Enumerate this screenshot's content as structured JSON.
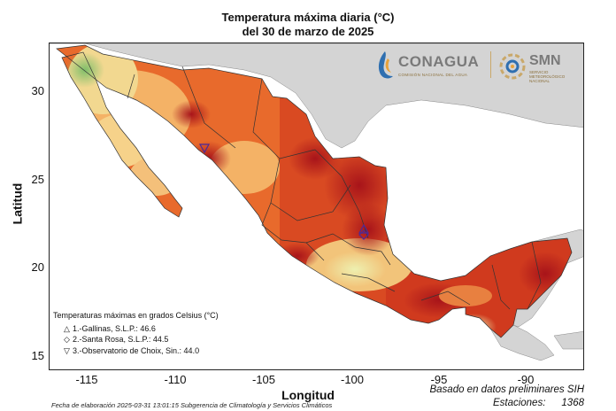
{
  "title_line1": "Temperatura máxima diaria (°C)",
  "title_line2": "del 30 de marzo de 2025",
  "axes": {
    "xlabel": "Longitud",
    "ylabel": "Latitud",
    "x_ticks": [
      "-115",
      "-110",
      "-105",
      "-100",
      "-95",
      "-90"
    ],
    "y_ticks": [
      "30",
      "25",
      "20",
      "15"
    ]
  },
  "legend": {
    "heading": "Temperaturas máximas en grados Celsius (°C)",
    "items": [
      {
        "marker": "△",
        "text": "1.-Gallinas, S.L.P.: 46.6"
      },
      {
        "marker": "◇",
        "text": "2.-Santa Rosa, S.L.P.: 44.5"
      },
      {
        "marker": "▽",
        "text": "3.-Observatorio de Choix, Sin.: 44.0"
      }
    ]
  },
  "footer": "Fecha de elaboración 2025-03-31 13:01:15 Subgerencia de Climatología y Servicios Climáticos",
  "note_basis": "Basado en datos preliminares SIH",
  "stations_label": "Estaciones:",
  "stations_count": "1368",
  "logos": {
    "conagua": "CONAGUA",
    "conagua_sub": "COMISIÓN NACIONAL DEL AGUA",
    "smn": "SMN",
    "smn_sub_1": "SERVICIO",
    "smn_sub_2": "METEOROLÓGICO",
    "smn_sub_3": "NACIONAL"
  },
  "colors": {
    "ocean": "#ffffff",
    "land_other": "#d4d4d4",
    "hot": "#c8281c",
    "warm": "#e86a2c",
    "mild": "#f4b266",
    "cool": "#f0e8a0",
    "green": "#9ccc7a",
    "blue": "#3a7fb0"
  }
}
